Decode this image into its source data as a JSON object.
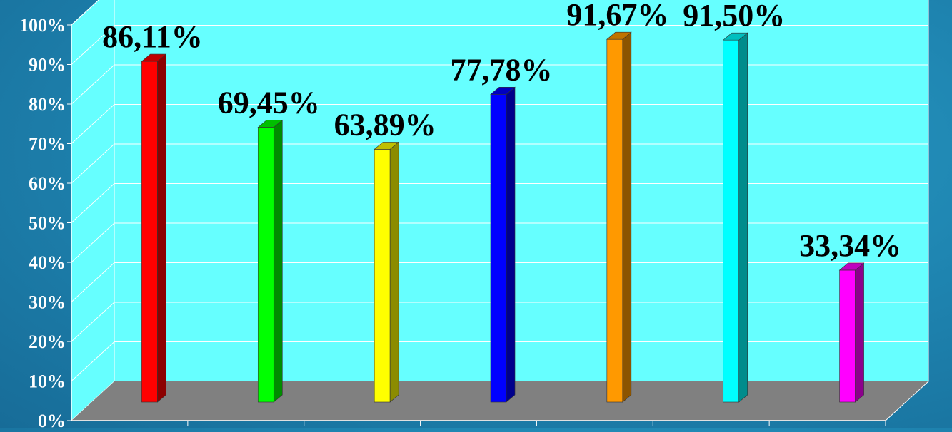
{
  "chart_data": {
    "type": "bar",
    "title": "",
    "xlabel": "",
    "ylabel": "",
    "ylim": [
      0,
      100
    ],
    "yticks": [
      "0%",
      "10%",
      "20%",
      "30%",
      "40%",
      "50%",
      "60%",
      "70%",
      "80%",
      "90%",
      "100%"
    ],
    "grid": true,
    "values": [
      86.11,
      69.45,
      63.89,
      77.78,
      91.67,
      91.5,
      33.34
    ],
    "labels": [
      "86,11%",
      "69,45%",
      "63,89%",
      "77,78%",
      "91,67%",
      "91,50%",
      "33,34%"
    ],
    "colors": [
      "#ff0000",
      "#00ff00",
      "#ffff00",
      "#0000ff",
      "#ff9900",
      "#00ffff",
      "#ff00ff"
    ],
    "wall_color": "#66ffff",
    "floor_color": "#808080"
  }
}
